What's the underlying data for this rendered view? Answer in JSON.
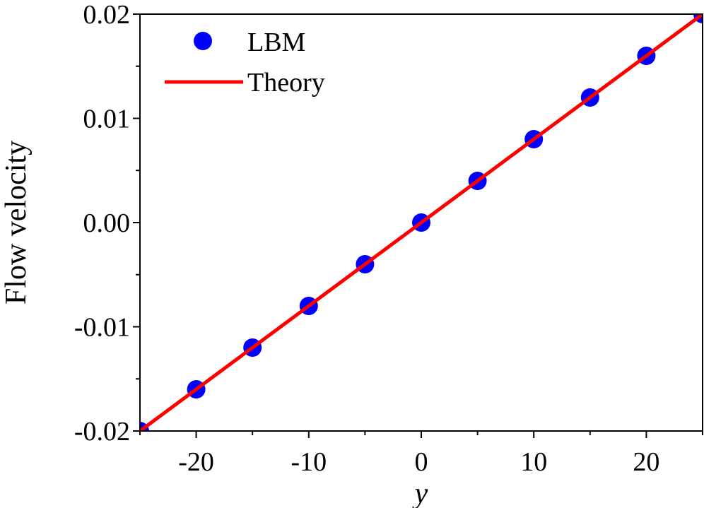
{
  "chart_data": {
    "type": "scatter",
    "xlabel": "y",
    "ylabel": "Flow velocity",
    "xlim": [
      -25,
      25
    ],
    "ylim": [
      -0.02,
      0.02
    ],
    "xticks": [
      -20,
      -10,
      0,
      10,
      20
    ],
    "xtick_labels": [
      "-20",
      "-10",
      "0",
      "10",
      "20"
    ],
    "xminor": [
      -25,
      -15,
      -5,
      5,
      15,
      25
    ],
    "yticks": [
      -0.02,
      -0.01,
      0.0,
      0.01,
      0.02
    ],
    "ytick_labels": [
      "-0.02",
      "-0.01",
      "0.00",
      "0.01",
      "0.02"
    ],
    "yminor": [
      -0.015,
      -0.005,
      0.005,
      0.015
    ],
    "grid": false,
    "legend_position": "top-left",
    "series": [
      {
        "name": "LBM",
        "kind": "markers",
        "color": "#0000ff",
        "x": [
          -25,
          -20,
          -15,
          -10,
          -5,
          0,
          5,
          10,
          15,
          20,
          25
        ],
        "y": [
          -0.02,
          -0.016,
          -0.012,
          -0.008,
          -0.004,
          0.0,
          0.004,
          0.008,
          0.012,
          0.016,
          0.02
        ]
      },
      {
        "name": "Theory",
        "kind": "line",
        "color": "#ff0000",
        "x": [
          -25,
          25
        ],
        "y": [
          -0.02,
          0.02
        ]
      }
    ]
  }
}
